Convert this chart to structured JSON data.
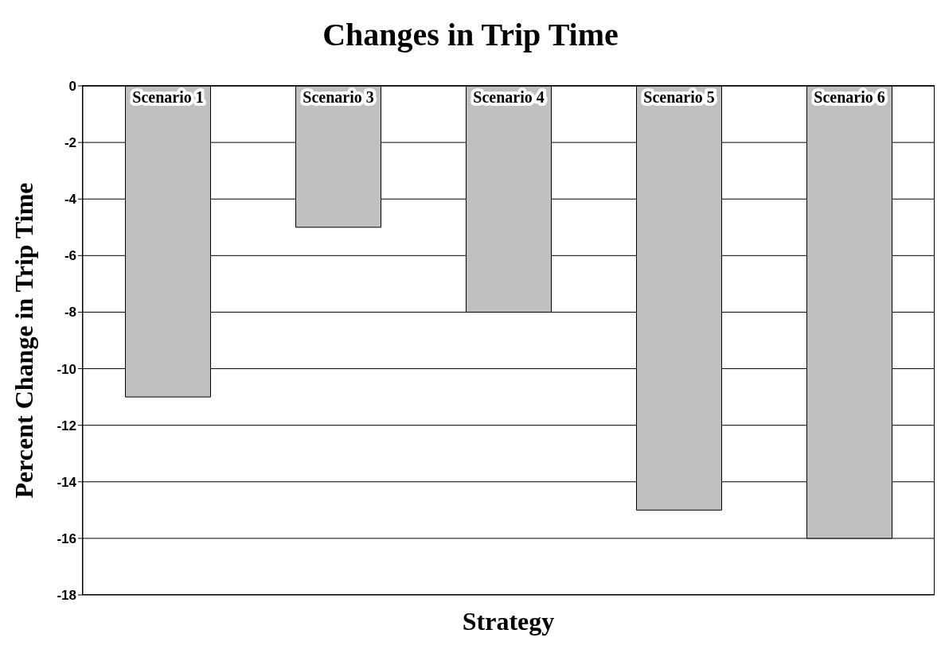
{
  "chart_data": {
    "type": "bar",
    "title": "Changes in Trip Time",
    "xlabel": "Strategy",
    "ylabel": "Percent Change in Trip Time",
    "categories": [
      "Scenario 1",
      "Scenario 3",
      "Scenario 4",
      "Scenario 5",
      "Scenario 6"
    ],
    "values": [
      -11,
      -5,
      -8,
      -15,
      -16
    ],
    "color": "#c0c0c0",
    "ylim": [
      -18,
      0
    ],
    "yticks": [
      -18,
      -16,
      -14,
      -12,
      -10,
      -8,
      -6,
      -4,
      -2,
      0
    ],
    "grid": "y"
  }
}
